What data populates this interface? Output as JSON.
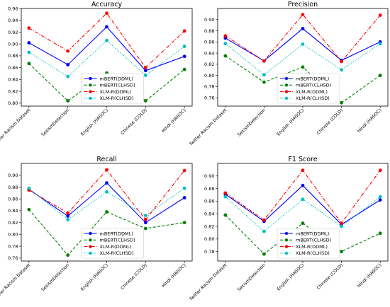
{
  "chart_data": [
    {
      "type": "line",
      "title": "Accuracy",
      "categories": [
        "Twitter Racism Dataset",
        "SexismDetection",
        "English (HASOC)",
        "Chinese (COLD)",
        "Hindi (HASOC)"
      ],
      "ylim": [
        0.795,
        0.96
      ],
      "yticks": [
        "0.80",
        "0.82",
        "0.84",
        "0.86",
        "0.88",
        "0.90",
        "0.92",
        "0.94",
        "0.96"
      ],
      "legend": "lower-center",
      "series": [
        {
          "name": "mBERT(DDML)",
          "color": "#0000ff",
          "dash": "solid",
          "values": [
            0.902,
            0.865,
            0.929,
            0.855,
            0.879
          ]
        },
        {
          "name": "mBERT(CLHSD)",
          "color": "#008000",
          "dash": "dashed",
          "values": [
            0.867,
            0.804,
            0.851,
            0.804,
            0.857
          ]
        },
        {
          "name": "XLM-R(DDML)",
          "color": "#ff0000",
          "dash": "dashdot",
          "values": [
            0.927,
            0.888,
            0.952,
            0.86,
            0.922
          ]
        },
        {
          "name": "XLM-R(CLHSD)",
          "color": "#00bfbf",
          "dash": "dotted",
          "values": [
            0.886,
            0.845,
            0.906,
            0.847,
            0.896
          ]
        }
      ]
    },
    {
      "type": "line",
      "title": "Precision",
      "categories": [
        "Twitter Racism Dataset",
        "SexismDetection",
        "English (HASOC)",
        "Chinese (COLD)",
        "Hindi (HASOC)"
      ],
      "ylim": [
        0.745,
        0.92
      ],
      "yticks": [
        "0.76",
        "0.78",
        "0.80",
        "0.82",
        "0.84",
        "0.86",
        "0.88",
        "0.90"
      ],
      "legend": "lower-center",
      "series": [
        {
          "name": "mBERT(DDML)",
          "color": "#0000ff",
          "dash": "solid",
          "values": [
            0.867,
            0.826,
            0.884,
            0.827,
            0.86
          ]
        },
        {
          "name": "mBERT(CLHSD)",
          "color": "#008000",
          "dash": "dashed",
          "values": [
            0.835,
            0.788,
            0.815,
            0.751,
            0.8
          ]
        },
        {
          "name": "XLM-R(DDML)",
          "color": "#ff0000",
          "dash": "dashdot",
          "values": [
            0.871,
            0.826,
            0.909,
            0.825,
            0.908
          ]
        },
        {
          "name": "XLM-R(CLHSD)",
          "color": "#00bfbf",
          "dash": "dotted",
          "values": [
            0.857,
            0.801,
            0.856,
            0.81,
            0.857
          ]
        }
      ]
    },
    {
      "type": "line",
      "title": "Recall",
      "categories": [
        "Twitter Racism Dataset",
        "SexismDetection",
        "English (HASOC)",
        "Chinese (COLD)",
        "Hindi (HASOC)"
      ],
      "ylim": [
        0.755,
        0.92
      ],
      "yticks": [
        "0.76",
        "0.78",
        "0.80",
        "0.82",
        "0.84",
        "0.86",
        "0.88",
        "0.90"
      ],
      "legend": "lower-center",
      "series": [
        {
          "name": "mBERT(DDML)",
          "color": "#0000ff",
          "dash": "solid",
          "values": [
            0.876,
            0.831,
            0.887,
            0.82,
            0.862
          ]
        },
        {
          "name": "mBERT(CLHSD)",
          "color": "#008000",
          "dash": "dashed",
          "values": [
            0.842,
            0.765,
            0.838,
            0.81,
            0.82
          ]
        },
        {
          "name": "XLM-R(DDML)",
          "color": "#ff0000",
          "dash": "dashdot",
          "values": [
            0.875,
            0.836,
            0.909,
            0.825,
            0.908
          ]
        },
        {
          "name": "XLM-R(CLHSD)",
          "color": "#00bfbf",
          "dash": "dotted",
          "values": [
            0.878,
            0.825,
            0.872,
            0.832,
            0.878
          ]
        }
      ]
    },
    {
      "type": "line",
      "title": "F1 Score",
      "categories": [
        "Twitter Racism Dataset",
        "SexismDetection",
        "English (HASOC)",
        "Chinese (COLD)",
        "Hindi (HASOC)"
      ],
      "ylim": [
        0.765,
        0.92
      ],
      "yticks": [
        "0.78",
        "0.80",
        "0.82",
        "0.84",
        "0.86",
        "0.88",
        "0.90"
      ],
      "legend": "lower-center",
      "series": [
        {
          "name": "mBERT(DDML)",
          "color": "#0000ff",
          "dash": "solid",
          "values": [
            0.871,
            0.828,
            0.885,
            0.823,
            0.862
          ]
        },
        {
          "name": "mBERT(CLHSD)",
          "color": "#008000",
          "dash": "dashed",
          "values": [
            0.838,
            0.776,
            0.825,
            0.78,
            0.809
          ]
        },
        {
          "name": "XLM-R(DDML)",
          "color": "#ff0000",
          "dash": "dashdot",
          "values": [
            0.873,
            0.83,
            0.909,
            0.825,
            0.909
          ]
        },
        {
          "name": "XLM-R(CLHSD)",
          "color": "#00bfbf",
          "dash": "dotted",
          "values": [
            0.867,
            0.812,
            0.863,
            0.82,
            0.867
          ]
        }
      ]
    }
  ]
}
